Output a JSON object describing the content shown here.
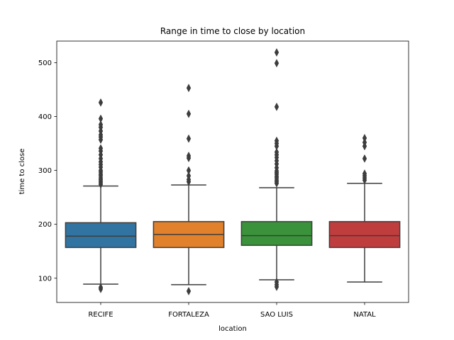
{
  "chart_data": {
    "type": "box",
    "title": "Range in time to close by location",
    "xlabel": "location",
    "ylabel": "time to close",
    "ylim": [
      55,
      540
    ],
    "yticks": [
      100,
      200,
      300,
      400,
      500
    ],
    "grid": false,
    "categories": [
      "RECIFE",
      "FORTALEZA",
      "SAO LUIS",
      "NATAL"
    ],
    "boxes": [
      {
        "category": "RECIFE",
        "color": "#3274a1",
        "whisker_low": 89,
        "q1": 157,
        "median": 178,
        "q3": 203,
        "whisker_high": 271,
        "outliers": [
          80,
          83,
          274,
          277,
          280,
          283,
          286,
          290,
          293,
          297,
          300,
          306,
          311,
          316,
          322,
          329,
          336,
          341,
          357,
          362,
          366,
          373,
          380,
          385,
          396,
          426
        ]
      },
      {
        "category": "FORTALEZA",
        "color": "#e1812c",
        "whisker_low": 88,
        "q1": 157,
        "median": 181,
        "q3": 205,
        "whisker_high": 273,
        "outliers": [
          76,
          279,
          283,
          290,
          300,
          323,
          327,
          359,
          405,
          453
        ]
      },
      {
        "category": "SAO LUIS",
        "color": "#3a923a",
        "whisker_low": 97,
        "q1": 161,
        "median": 179,
        "q3": 205,
        "whisker_high": 268,
        "outliers": [
          84,
          88,
          93,
          276,
          279,
          282,
          286,
          289,
          293,
          296,
          299,
          305,
          312,
          318,
          324,
          329,
          334,
          345,
          350,
          355,
          418,
          499,
          519
        ]
      },
      {
        "category": "NATAL",
        "color": "#c03d3e",
        "whisker_low": 93,
        "q1": 157,
        "median": 179,
        "q3": 205,
        "whisker_high": 276,
        "outliers": [
          282,
          286,
          290,
          294,
          322,
          345,
          352,
          360
        ]
      }
    ]
  }
}
